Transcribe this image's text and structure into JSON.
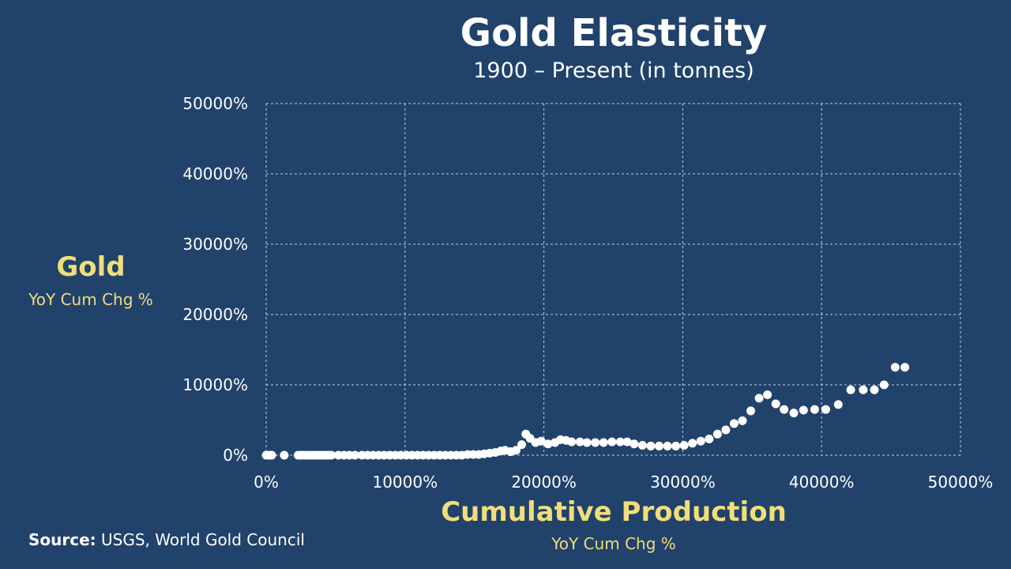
{
  "chart_data": {
    "type": "scatter",
    "title": "Gold Elasticity",
    "subtitle": "1900 – Present (in tonnes)",
    "ylabel": "Gold",
    "ylabel_sub": "YoY Cum Chg %",
    "xlabel": "Cumulative Production",
    "xlabel_sub": "YoY Cum Chg %",
    "xlim": [
      0,
      50000
    ],
    "ylim": [
      0,
      50000
    ],
    "xticks": [
      "0%",
      "10000%",
      "20000%",
      "30000%",
      "40000%",
      "50000%"
    ],
    "yticks": [
      "0%",
      "10000%",
      "20000%",
      "30000%",
      "40000%",
      "50000%"
    ],
    "grid": true,
    "marker_color": "#ffffff",
    "series": [
      {
        "x": [
          0,
          200,
          400,
          1300,
          2300,
          2500,
          2700,
          2900,
          3100,
          3300,
          3500,
          3700,
          3900,
          4100,
          4300,
          4500,
          4700,
          5200,
          5600,
          6000,
          6400,
          6900,
          7300,
          7700,
          8100,
          8500,
          8900,
          9300,
          9700,
          10100,
          10500,
          10900,
          11300,
          11700,
          12100,
          12500,
          12900,
          13300,
          13700,
          14100,
          14500,
          14900,
          15300,
          15700,
          16100,
          16500,
          16900,
          17200,
          17600,
          18000,
          18400,
          18700,
          19000,
          19400,
          19800,
          20300,
          20800,
          21200,
          21600,
          22000,
          22600,
          23100,
          23700,
          24300,
          24900,
          25500,
          26000,
          26500,
          27100,
          27700,
          28300,
          28900,
          29500,
          30100,
          30700,
          31300,
          31900,
          32500,
          33100,
          33700,
          34300,
          34900,
          35500,
          36100,
          36700,
          37300,
          38000,
          38700,
          39500,
          40300,
          41200,
          42100,
          43000,
          43800,
          44500,
          45300,
          46000
        ],
        "y": [
          0,
          0,
          0,
          0,
          0,
          0,
          0,
          0,
          0,
          0,
          0,
          0,
          0,
          0,
          0,
          0,
          0,
          0,
          0,
          0,
          0,
          0,
          0,
          0,
          0,
          0,
          0,
          0,
          0,
          0,
          0,
          0,
          0,
          0,
          0,
          0,
          0,
          0,
          0,
          0,
          100,
          100,
          100,
          200,
          300,
          400,
          600,
          700,
          500,
          700,
          1500,
          3000,
          2400,
          1800,
          2000,
          1600,
          1800,
          2200,
          2100,
          1900,
          1900,
          1800,
          1800,
          1800,
          1900,
          1900,
          1900,
          1600,
          1400,
          1300,
          1300,
          1300,
          1300,
          1400,
          1700,
          2000,
          2300,
          3000,
          3600,
          4500,
          4900,
          6300,
          8100,
          8600,
          7300,
          6500,
          6000,
          6400,
          6500,
          6500,
          7200,
          9300,
          9300,
          9300,
          10000,
          12500,
          12500
        ]
      }
    ]
  },
  "source": {
    "label": "Source:",
    "text": "USGS, World Gold Council"
  }
}
